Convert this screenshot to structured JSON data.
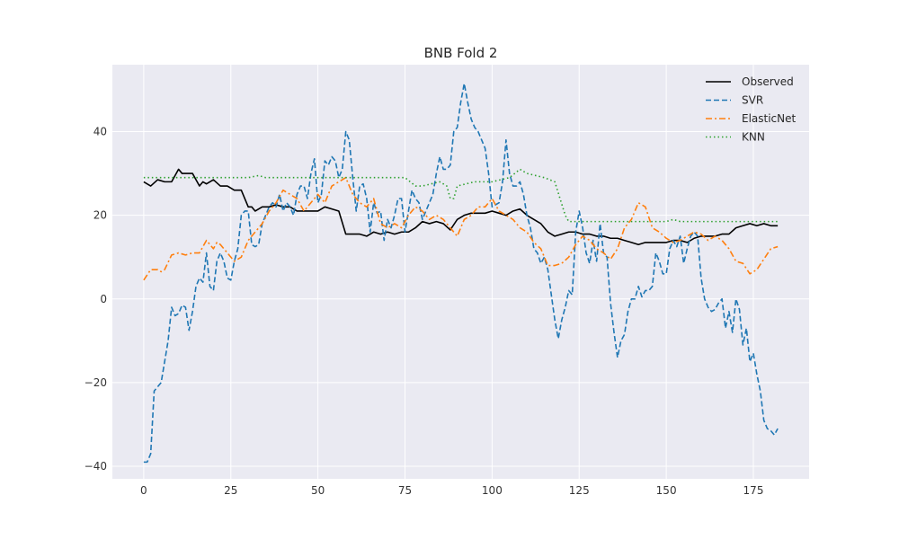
{
  "chart_data": {
    "type": "line",
    "title": "BNB Fold 2",
    "xlabel": "",
    "ylabel": "",
    "xlim": [
      -9,
      191
    ],
    "ylim": [
      -43,
      56
    ],
    "xticks": [
      0,
      25,
      50,
      75,
      100,
      125,
      150,
      175
    ],
    "yticks": [
      -40,
      -20,
      0,
      20,
      40
    ],
    "xtick_labels": [
      "0",
      "25",
      "50",
      "75",
      "100",
      "125",
      "150",
      "175"
    ],
    "ytick_labels": [
      "−40",
      "−20",
      "0",
      "20",
      "40"
    ],
    "grid": true,
    "legend_position": "top-right",
    "colors": {
      "background": "#EAEAF2",
      "grid": "#FFFFFF",
      "Observed": "#000000",
      "SVR": "#1F77B4",
      "ElasticNet": "#FF7F0E",
      "KNN": "#2CA02C"
    },
    "series": [
      {
        "name": "Observed",
        "style": "solid",
        "x": [
          0,
          2,
          4,
          6,
          8,
          10,
          11,
          12,
          14,
          16,
          17,
          18,
          20,
          22,
          24,
          26,
          28,
          30,
          31,
          32,
          34,
          36,
          38,
          40,
          42,
          44,
          46,
          48,
          50,
          52,
          54,
          56,
          58,
          60,
          62,
          64,
          66,
          68,
          70,
          72,
          74,
          76,
          78,
          80,
          82,
          84,
          86,
          88,
          90,
          92,
          94,
          96,
          98,
          100,
          102,
          104,
          106,
          108,
          110,
          112,
          114,
          116,
          118,
          120,
          122,
          124,
          126,
          128,
          130,
          132,
          134,
          136,
          138,
          140,
          142,
          144,
          146,
          148,
          150,
          152,
          154,
          156,
          158,
          160,
          162,
          164,
          166,
          168,
          170,
          172,
          174,
          176,
          178,
          180,
          182
        ],
        "values": [
          28,
          27,
          28.5,
          28,
          28,
          31,
          30,
          30,
          30,
          27,
          28,
          27.5,
          28.5,
          27,
          27,
          26,
          26,
          22,
          22,
          21,
          22,
          22,
          22.5,
          22,
          22,
          21,
          21,
          21,
          21,
          22,
          21.5,
          21,
          15.5,
          15.5,
          15.5,
          15,
          16,
          15.5,
          16,
          15.5,
          16,
          16,
          17,
          18.5,
          18,
          18.5,
          18,
          16.5,
          19,
          20,
          20.5,
          20.5,
          20.5,
          21,
          20.5,
          20,
          21,
          21.5,
          20,
          19,
          18,
          16,
          15,
          15.5,
          16,
          16,
          15.5,
          15.5,
          15,
          15,
          14.5,
          14.5,
          14,
          13.5,
          13,
          13.5,
          13.5,
          13.5,
          13.5,
          14,
          14,
          13.5,
          14.5,
          15,
          15,
          15,
          15.5,
          15.5,
          17,
          17.5,
          18,
          17.5,
          18,
          17.5,
          17.5
        ]
      },
      {
        "name": "SVR",
        "style": "dashed",
        "x": [
          0,
          1,
          2,
          3,
          4,
          5,
          6,
          7,
          8,
          9,
          10,
          11,
          12,
          13,
          14,
          15,
          16,
          17,
          18,
          19,
          20,
          21,
          22,
          23,
          24,
          25,
          26,
          27,
          28,
          29,
          30,
          31,
          32,
          33,
          34,
          35,
          36,
          37,
          38,
          39,
          40,
          41,
          42,
          43,
          44,
          45,
          46,
          47,
          48,
          49,
          50,
          51,
          52,
          53,
          54,
          55,
          56,
          57,
          58,
          59,
          60,
          61,
          62,
          63,
          64,
          65,
          66,
          67,
          68,
          69,
          70,
          71,
          72,
          73,
          74,
          75,
          76,
          77,
          78,
          79,
          80,
          81,
          82,
          83,
          84,
          85,
          86,
          87,
          88,
          89,
          90,
          91,
          92,
          93,
          94,
          95,
          96,
          97,
          98,
          99,
          100,
          101,
          102,
          103,
          104,
          105,
          106,
          107,
          108,
          109,
          110,
          111,
          112,
          113,
          114,
          115,
          116,
          117,
          118,
          119,
          120,
          121,
          122,
          123,
          124,
          125,
          126,
          127,
          128,
          129,
          130,
          131,
          132,
          133,
          134,
          135,
          136,
          137,
          138,
          139,
          140,
          141,
          142,
          143,
          144,
          145,
          146,
          147,
          148,
          149,
          150,
          151,
          152,
          153,
          154,
          155,
          156,
          157,
          158,
          159,
          160,
          161,
          162,
          163,
          164,
          165,
          166,
          167,
          168,
          169,
          170,
          171,
          172,
          173,
          174,
          175,
          176,
          177,
          178,
          179,
          180,
          181,
          182
        ],
        "values": [
          -39,
          -39,
          -37,
          -22,
          -21,
          -20,
          -15,
          -10,
          -2,
          -4,
          -3.5,
          -1.5,
          -2,
          -7.5,
          -3,
          3,
          5,
          4,
          11,
          3,
          2,
          9,
          11,
          9,
          5,
          4.5,
          9,
          12,
          20,
          21,
          21,
          13,
          12.5,
          13,
          18,
          20,
          22,
          23,
          22,
          25,
          21,
          23,
          22,
          20,
          25,
          27,
          27,
          24,
          30,
          33.5,
          23,
          25,
          33,
          32,
          34,
          33,
          29,
          31,
          40,
          38,
          29,
          21,
          27,
          27.5,
          24,
          16,
          23,
          20.5,
          21,
          14,
          19,
          17,
          20,
          24,
          24,
          16,
          21,
          26,
          24,
          23,
          19,
          21,
          23,
          25,
          30,
          34,
          31,
          31,
          32,
          40,
          41,
          47,
          51.5,
          47,
          43,
          41,
          40,
          38,
          36,
          30,
          22,
          22.5,
          23,
          28,
          38,
          30,
          27,
          27,
          28,
          25,
          20,
          17,
          12,
          11,
          8.5,
          10,
          7,
          1,
          -5,
          -9.5,
          -5,
          -2,
          2,
          1,
          16,
          21,
          17,
          11,
          8.5,
          14,
          9,
          18,
          11,
          10,
          -1,
          -8,
          -14,
          -10,
          -8.5,
          -3,
          0,
          0,
          3,
          0.5,
          2,
          2,
          3,
          11,
          9,
          6,
          6,
          12,
          14,
          12.5,
          15,
          8.5,
          12,
          15,
          16,
          15,
          5,
          0,
          -2,
          -3,
          -2.5,
          -1,
          0,
          -7,
          -3,
          -8,
          0,
          -2.5,
          -11,
          -7,
          -15,
          -13,
          -18,
          -22,
          -29,
          -31,
          -31.5,
          -32.5,
          -31
        ]
      },
      {
        "name": "ElasticNet",
        "style": "dashdot",
        "x": [
          0,
          2,
          4,
          5,
          6,
          8,
          10,
          12,
          14,
          16,
          18,
          20,
          21,
          22,
          24,
          26,
          28,
          30,
          32,
          34,
          36,
          38,
          40,
          42,
          44,
          46,
          48,
          50,
          52,
          54,
          56,
          58,
          60,
          62,
          64,
          66,
          68,
          70,
          72,
          74,
          76,
          78,
          80,
          82,
          84,
          86,
          88,
          90,
          92,
          94,
          96,
          98,
          100,
          102,
          104,
          106,
          108,
          110,
          112,
          114,
          116,
          118,
          120,
          122,
          124,
          126,
          128,
          130,
          132,
          134,
          136,
          138,
          140,
          142,
          144,
          146,
          148,
          150,
          152,
          154,
          156,
          158,
          160,
          162,
          164,
          166,
          168,
          170,
          172,
          174,
          176,
          178,
          180,
          182
        ],
        "values": [
          4.5,
          7,
          7,
          6.5,
          7,
          10.5,
          11,
          10.5,
          11,
          11,
          14,
          12,
          13.5,
          13,
          11,
          9,
          10,
          14,
          16,
          18,
          21,
          23,
          26,
          25,
          24,
          21,
          23,
          25,
          23,
          27,
          28,
          29,
          25,
          23,
          22,
          24,
          18,
          17,
          18,
          17,
          20,
          22,
          21,
          19,
          20,
          19,
          17,
          15,
          19,
          20,
          22,
          22,
          24,
          21,
          20,
          19,
          17,
          16,
          13.5,
          12,
          8,
          8,
          8.5,
          10,
          13,
          15,
          14,
          12,
          11,
          9.5,
          12,
          17,
          19,
          23,
          22,
          17,
          16,
          14.5,
          13.5,
          14,
          15,
          16,
          15.5,
          14,
          15,
          14,
          12,
          9,
          8.5,
          6,
          7,
          9.5,
          12,
          12.5
        ]
      },
      {
        "name": "KNN",
        "style": "dotted",
        "x": [
          0,
          10,
          20,
          30,
          33,
          35,
          40,
          50,
          60,
          70,
          75,
          78,
          80,
          85,
          87,
          88,
          89,
          90,
          95,
          100,
          105,
          108,
          110,
          115,
          118,
          121,
          122,
          125,
          130,
          140,
          150,
          152,
          154,
          160,
          170,
          180,
          182
        ],
        "values": [
          29,
          29,
          29,
          29,
          29.5,
          29,
          29,
          29,
          29,
          29,
          29,
          27,
          27,
          28,
          27,
          24,
          24,
          27,
          28,
          28,
          29,
          31,
          30,
          29,
          28,
          20,
          18.5,
          18.5,
          18.5,
          18.5,
          18.5,
          19,
          18.5,
          18.5,
          18.5,
          18.5,
          18.5
        ]
      }
    ]
  }
}
